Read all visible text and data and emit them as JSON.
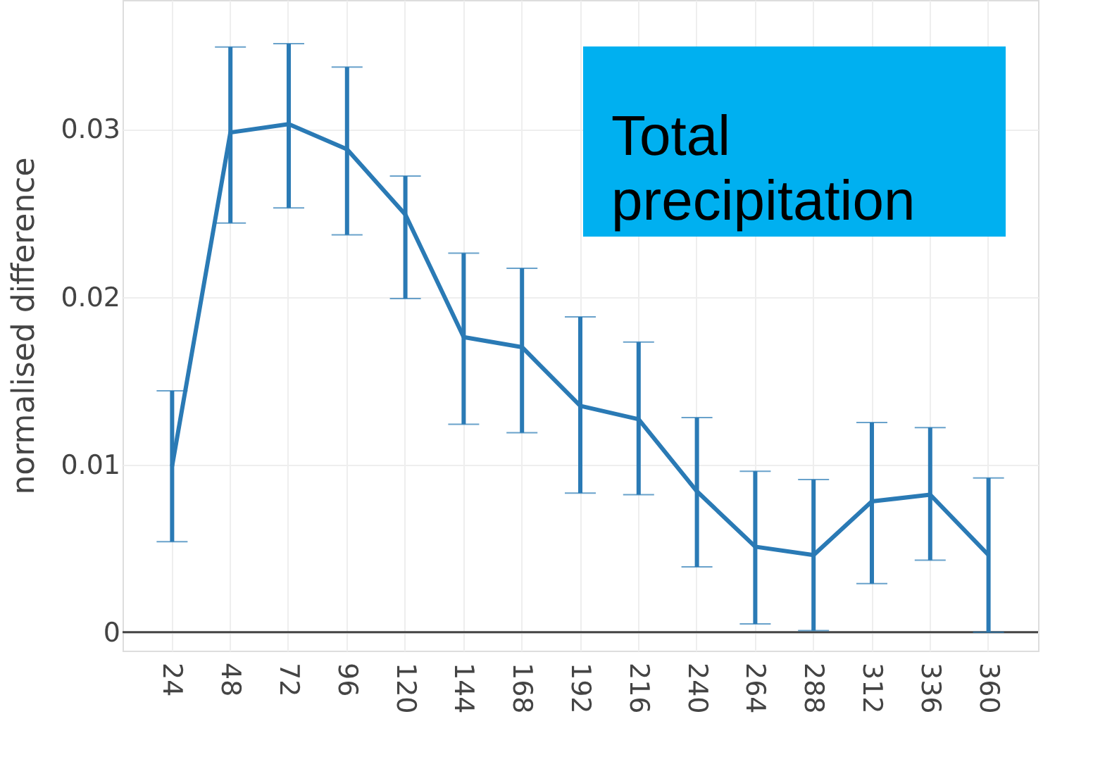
{
  "chart_data": {
    "type": "line",
    "ylabel": "normalised difference",
    "annotations": [
      "Total precipitation"
    ],
    "categories": [
      "24",
      "48",
      "72",
      "96",
      "120",
      "144",
      "168",
      "192",
      "216",
      "240",
      "264",
      "288",
      "312",
      "336",
      "360"
    ],
    "series": [
      {
        "color": "#2a7ab5",
        "values": [
          0.0099,
          0.0298,
          0.0303,
          0.0288,
          0.0249,
          0.0176,
          0.017,
          0.0135,
          0.0127,
          0.0084,
          0.0051,
          0.0046,
          0.0078,
          0.0082,
          0.0046
        ],
        "errors": [
          [
            0.0054,
            0.0144
          ],
          [
            0.0244,
            0.0349
          ],
          [
            0.0253,
            0.0351
          ],
          [
            0.0237,
            0.0337
          ],
          [
            0.0199,
            0.0272
          ],
          [
            0.0124,
            0.0226
          ],
          [
            0.0119,
            0.0217
          ],
          [
            0.0083,
            0.0188
          ],
          [
            0.0082,
            0.0173
          ],
          [
            0.0039,
            0.0128
          ],
          [
            0.0005,
            0.0096
          ],
          [
            0.0001,
            0.0091
          ],
          [
            0.0029,
            0.0125
          ],
          [
            0.0043,
            0.0122
          ],
          [
            0.0,
            0.0092
          ]
        ]
      }
    ],
    "ylim": [
      -0.0011,
      0.0377
    ],
    "yticks": [
      0,
      0.01,
      0.02,
      0.03
    ],
    "grid": true,
    "marker": "none",
    "line_style": "solid",
    "ref_lines": [
      {
        "axis": "y",
        "value": 0,
        "color": "#444444"
      }
    ]
  }
}
